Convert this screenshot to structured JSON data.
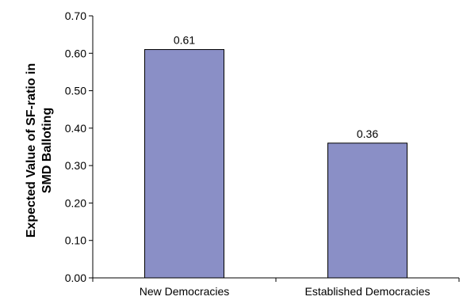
{
  "chart_data": {
    "type": "bar",
    "title": "",
    "xlabel": "",
    "ylabel_lines": [
      "Expected Value of SF-ratio in",
      "SMD Balloting"
    ],
    "categories": [
      "New Democracies",
      "Established Democracies"
    ],
    "values": [
      0.61,
      0.36
    ],
    "data_labels": [
      "0.61",
      "0.36"
    ],
    "ylim": [
      0,
      0.7
    ],
    "yticks": [
      "0.00",
      "0.10",
      "0.20",
      "0.30",
      "0.40",
      "0.50",
      "0.60",
      "0.70"
    ],
    "grid": false,
    "legend": "none",
    "colors": {
      "bar_fill": "#8A8FC6",
      "bar_stroke": "#000000",
      "axis": "#000000"
    }
  }
}
